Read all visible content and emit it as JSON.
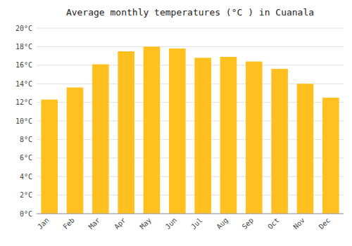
{
  "chart_data": {
    "type": "bar",
    "title": "Average monthly temperatures (°C ) in Cuanala",
    "categories": [
      "Jan",
      "Feb",
      "Mar",
      "Apr",
      "May",
      "Jun",
      "Jul",
      "Aug",
      "Sep",
      "Oct",
      "Nov",
      "Dec"
    ],
    "values": [
      12.3,
      13.6,
      16.1,
      17.5,
      18.0,
      17.8,
      16.8,
      16.9,
      16.4,
      15.6,
      14.0,
      12.5
    ],
    "color": "#FFC020",
    "ylim": [
      0,
      20
    ],
    "yticks": [
      {
        "value": 0,
        "label": "0°C"
      },
      {
        "value": 2,
        "label": "2°C"
      },
      {
        "value": 4,
        "label": "4°C"
      },
      {
        "value": 6,
        "label": "6°C"
      },
      {
        "value": 8,
        "label": "8°C"
      },
      {
        "value": 10,
        "label": "10°C"
      },
      {
        "value": 12,
        "label": "12°C"
      },
      {
        "value": 14,
        "label": "14°C"
      },
      {
        "value": 16,
        "label": "16°C"
      },
      {
        "value": 18,
        "label": "18°C"
      },
      {
        "value": 20,
        "label": "20°C"
      }
    ],
    "grid": true
  }
}
